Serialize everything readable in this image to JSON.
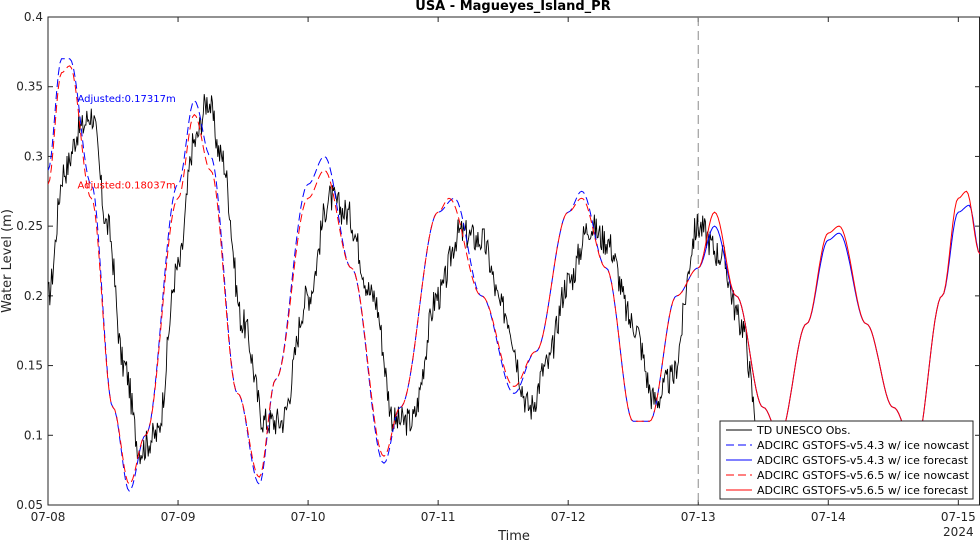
{
  "chart_data": {
    "type": "line",
    "title": "USA - Magueyes_Island_PR",
    "xlabel": "Time",
    "ylabel": "Water Level (m)",
    "xlim": [
      "2024-07-08 00:00",
      "2024-07-15 04:00"
    ],
    "ylim": [
      0.05,
      0.4
    ],
    "x_ticks": [
      "07-08",
      "07-09",
      "07-10",
      "07-11",
      "07-12",
      "07-13",
      "07-14",
      "07-15"
    ],
    "x_tick_sublabel": "2024",
    "y_ticks": [
      "0.05",
      "0.1",
      "0.15",
      "0.2",
      "0.25",
      "0.3",
      "0.35",
      "0.4"
    ],
    "grid": false,
    "legend_position": "bottom-right",
    "nowcast_forecast_divider": "2024-07-13 00:00",
    "annotations": [
      {
        "text": "Adjusted:0.17317m",
        "color": "#0000ff",
        "at_time": "2024-07-08 06:00",
        "at_value": 0.342
      },
      {
        "text": "Adjusted:0.18037m",
        "color": "#ff0000",
        "at_time": "2024-07-08 06:00",
        "at_value": 0.28
      }
    ],
    "series": [
      {
        "name": "TD UNESCO Obs.",
        "color": "#000000",
        "dash": "solid",
        "points": [
          [
            "2024-07-08 00:00",
            0.2
          ],
          [
            "2024-07-08 03:00",
            0.29
          ],
          [
            "2024-07-08 06:00",
            0.32
          ],
          [
            "2024-07-08 08:00",
            0.33
          ],
          [
            "2024-07-08 11:00",
            0.25
          ],
          [
            "2024-07-08 14:00",
            0.15
          ],
          [
            "2024-07-08 17:00",
            0.09
          ],
          [
            "2024-07-08 20:00",
            0.1
          ],
          [
            "2024-07-09 00:00",
            0.22
          ],
          [
            "2024-07-09 03:00",
            0.31
          ],
          [
            "2024-07-09 05:30",
            0.34
          ],
          [
            "2024-07-09 08:00",
            0.3
          ],
          [
            "2024-07-09 12:00",
            0.18
          ],
          [
            "2024-07-09 16:00",
            0.11
          ],
          [
            "2024-07-09 19:00",
            0.11
          ],
          [
            "2024-07-10 00:00",
            0.2
          ],
          [
            "2024-07-10 04:00",
            0.27
          ],
          [
            "2024-07-10 07:00",
            0.26
          ],
          [
            "2024-07-10 12:00",
            0.2
          ],
          [
            "2024-07-10 16:00",
            0.11
          ],
          [
            "2024-07-10 19:00",
            0.11
          ],
          [
            "2024-07-11 00:00",
            0.2
          ],
          [
            "2024-07-11 04:00",
            0.245
          ],
          [
            "2024-07-11 08:00",
            0.24
          ],
          [
            "2024-07-11 12:00",
            0.19
          ],
          [
            "2024-07-11 17:00",
            0.12
          ],
          [
            "2024-07-11 20:00",
            0.15
          ],
          [
            "2024-07-12 00:00",
            0.21
          ],
          [
            "2024-07-12 04:00",
            0.25
          ],
          [
            "2024-07-12 07:00",
            0.24
          ],
          [
            "2024-07-12 12:00",
            0.18
          ],
          [
            "2024-07-12 16:00",
            0.125
          ],
          [
            "2024-07-12 19:00",
            0.14
          ],
          [
            "2024-07-13 00:00",
            0.25
          ],
          [
            "2024-07-13 04:00",
            0.23
          ],
          [
            "2024-07-13 08:00",
            0.18
          ],
          [
            "2024-07-13 11:00",
            0.11
          ]
        ]
      },
      {
        "name": "ADCIRC GSTOFS-v5.4.3 w/ ice nowcast",
        "color": "#0000ff",
        "dash": "dashed",
        "points": [
          [
            "2024-07-08 00:00",
            0.29
          ],
          [
            "2024-07-08 02:30",
            0.37
          ],
          [
            "2024-07-08 04:00",
            0.37
          ],
          [
            "2024-07-08 08:00",
            0.28
          ],
          [
            "2024-07-08 12:00",
            0.12
          ],
          [
            "2024-07-08 15:00",
            0.06
          ],
          [
            "2024-07-08 18:00",
            0.1
          ],
          [
            "2024-07-09 00:00",
            0.28
          ],
          [
            "2024-07-09 03:00",
            0.34
          ],
          [
            "2024-07-09 06:00",
            0.3
          ],
          [
            "2024-07-09 11:00",
            0.13
          ],
          [
            "2024-07-09 15:00",
            0.065
          ],
          [
            "2024-07-09 18:00",
            0.14
          ],
          [
            "2024-07-10 00:00",
            0.28
          ],
          [
            "2024-07-10 03:00",
            0.3
          ],
          [
            "2024-07-10 08:00",
            0.22
          ],
          [
            "2024-07-10 14:00",
            0.08
          ],
          [
            "2024-07-10 17:00",
            0.12
          ],
          [
            "2024-07-11 00:00",
            0.26
          ],
          [
            "2024-07-11 03:00",
            0.27
          ],
          [
            "2024-07-11 08:00",
            0.2
          ],
          [
            "2024-07-11 14:00",
            0.13
          ],
          [
            "2024-07-11 18:00",
            0.16
          ],
          [
            "2024-07-12 00:00",
            0.26
          ],
          [
            "2024-07-12 02:30",
            0.275
          ],
          [
            "2024-07-12 07:00",
            0.22
          ],
          [
            "2024-07-12 12:00",
            0.11
          ],
          [
            "2024-07-12 15:00",
            0.11
          ],
          [
            "2024-07-12 20:00",
            0.2
          ],
          [
            "2024-07-13 00:00",
            0.22
          ]
        ]
      },
      {
        "name": "ADCIRC GSTOFS-v5.4.3 w/ ice forecast",
        "color": "#0000ff",
        "dash": "solid",
        "points": [
          [
            "2024-07-13 00:00",
            0.22
          ],
          [
            "2024-07-13 03:00",
            0.25
          ],
          [
            "2024-07-13 07:00",
            0.2
          ],
          [
            "2024-07-13 12:00",
            0.12
          ],
          [
            "2024-07-13 15:00",
            0.1
          ],
          [
            "2024-07-13 20:00",
            0.18
          ],
          [
            "2024-07-14 00:00",
            0.24
          ],
          [
            "2024-07-14 02:00",
            0.245
          ],
          [
            "2024-07-14 07:00",
            0.18
          ],
          [
            "2024-07-14 12:00",
            0.12
          ],
          [
            "2024-07-14 16:00",
            0.09
          ],
          [
            "2024-07-14 21:00",
            0.2
          ],
          [
            "2024-07-15 00:00",
            0.26
          ],
          [
            "2024-07-15 02:00",
            0.265
          ],
          [
            "2024-07-15 04:00",
            0.23
          ]
        ]
      },
      {
        "name": "ADCIRC GSTOFS-v5.6.5 w/ ice nowcast",
        "color": "#ff0000",
        "dash": "dashed",
        "points": [
          [
            "2024-07-08 00:00",
            0.28
          ],
          [
            "2024-07-08 02:30",
            0.36
          ],
          [
            "2024-07-08 04:00",
            0.365
          ],
          [
            "2024-07-08 08:00",
            0.27
          ],
          [
            "2024-07-08 12:00",
            0.12
          ],
          [
            "2024-07-08 15:00",
            0.065
          ],
          [
            "2024-07-08 18:00",
            0.1
          ],
          [
            "2024-07-09 00:00",
            0.27
          ],
          [
            "2024-07-09 03:00",
            0.33
          ],
          [
            "2024-07-09 06:00",
            0.29
          ],
          [
            "2024-07-09 11:00",
            0.13
          ],
          [
            "2024-07-09 15:00",
            0.07
          ],
          [
            "2024-07-09 18:00",
            0.14
          ],
          [
            "2024-07-10 00:00",
            0.27
          ],
          [
            "2024-07-10 03:00",
            0.29
          ],
          [
            "2024-07-10 08:00",
            0.22
          ],
          [
            "2024-07-10 14:00",
            0.085
          ],
          [
            "2024-07-10 17:00",
            0.12
          ],
          [
            "2024-07-11 00:00",
            0.26
          ],
          [
            "2024-07-11 02:00",
            0.27
          ],
          [
            "2024-07-11 08:00",
            0.2
          ],
          [
            "2024-07-11 14:00",
            0.135
          ],
          [
            "2024-07-11 18:00",
            0.16
          ],
          [
            "2024-07-12 00:00",
            0.26
          ],
          [
            "2024-07-12 02:30",
            0.27
          ],
          [
            "2024-07-12 07:00",
            0.22
          ],
          [
            "2024-07-12 12:00",
            0.11
          ],
          [
            "2024-07-12 15:00",
            0.11
          ],
          [
            "2024-07-12 20:00",
            0.2
          ],
          [
            "2024-07-13 00:00",
            0.22
          ]
        ]
      },
      {
        "name": "ADCIRC GSTOFS-v5.6.5 w/ ice forecast",
        "color": "#ff0000",
        "dash": "solid",
        "points": [
          [
            "2024-07-13 00:00",
            0.22
          ],
          [
            "2024-07-13 03:00",
            0.26
          ],
          [
            "2024-07-13 07:00",
            0.2
          ],
          [
            "2024-07-13 12:00",
            0.12
          ],
          [
            "2024-07-13 15:00",
            0.1
          ],
          [
            "2024-07-13 20:00",
            0.18
          ],
          [
            "2024-07-14 00:00",
            0.245
          ],
          [
            "2024-07-14 02:00",
            0.25
          ],
          [
            "2024-07-14 07:00",
            0.18
          ],
          [
            "2024-07-14 12:00",
            0.12
          ],
          [
            "2024-07-14 16:00",
            0.09
          ],
          [
            "2024-07-14 21:00",
            0.2
          ],
          [
            "2024-07-15 00:00",
            0.27
          ],
          [
            "2024-07-15 01:30",
            0.275
          ],
          [
            "2024-07-15 04:00",
            0.23
          ]
        ]
      }
    ]
  }
}
